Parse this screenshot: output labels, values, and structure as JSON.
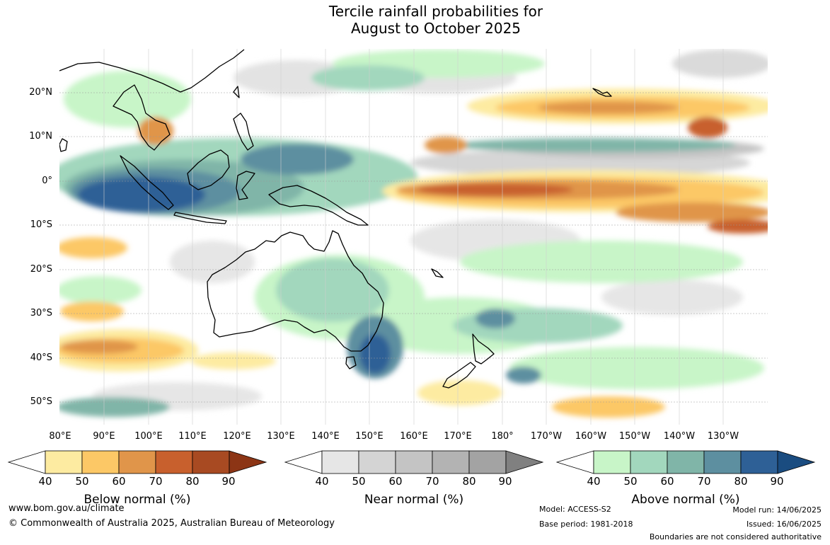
{
  "title_line1": "Tercile rainfall probabilities for",
  "title_line2": "August to October 2025",
  "lat_labels": [
    "20°N",
    "10°N",
    "0°",
    "10°S",
    "20°S",
    "30°S",
    "40°S",
    "50°S"
  ],
  "lon_labels": [
    "80°E",
    "90°E",
    "100°E",
    "110°E",
    "120°E",
    "130°E",
    "140°E",
    "150°E",
    "160°E",
    "170°E",
    "180°",
    "170°W",
    "160°W",
    "150°W",
    "140°W",
    "130°W"
  ],
  "colorbars": {
    "below": {
      "title": "Below normal (%)",
      "ticks": [
        "40",
        "50",
        "60",
        "70",
        "80",
        "90"
      ],
      "colors": [
        "#ffffff",
        "#fdeba1",
        "#fcc866",
        "#e0954a",
        "#c8602d",
        "#a84a22",
        "#8c3515"
      ]
    },
    "near": {
      "title": "Near normal (%)",
      "ticks": [
        "40",
        "50",
        "60",
        "70",
        "80",
        "90"
      ],
      "colors": [
        "#ffffff",
        "#e6e6e6",
        "#d4d4d4",
        "#c4c4c4",
        "#b3b3b3",
        "#a3a3a3",
        "#808080"
      ]
    },
    "above": {
      "title": "Above normal (%)",
      "ticks": [
        "40",
        "50",
        "60",
        "70",
        "80",
        "90"
      ],
      "colors": [
        "#ffffff",
        "#c8f5c8",
        "#a2d7bd",
        "#80b5a8",
        "#5d8fa0",
        "#2e6096",
        "#1a4c80"
      ]
    }
  },
  "footer": {
    "website": "www.bom.gov.au/climate",
    "copyright": "© Commonwealth of Australia 2025, Australian Bureau of Meteorology",
    "model": "Model: ACCESS-S2",
    "base_period": "Base period: 1981-2018",
    "model_run": "Model run: 14/06/2025",
    "issued": "Issued: 16/06/2025",
    "disclaimer": "Boundaries are not considered authoritative"
  }
}
